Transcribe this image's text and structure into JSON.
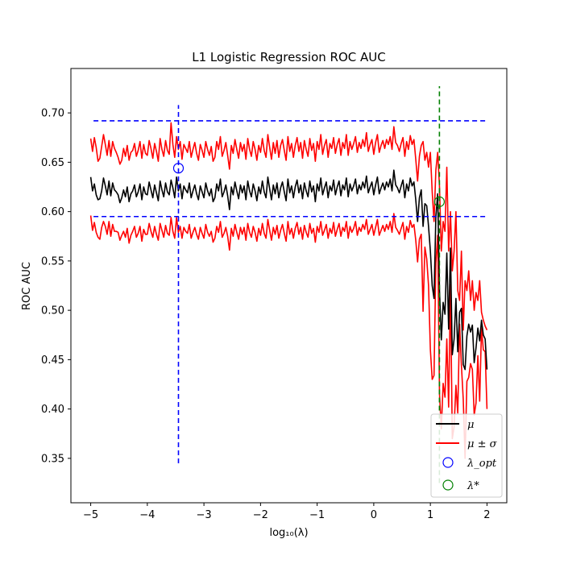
{
  "chart_data": {
    "type": "line",
    "title": "L1 Logistic Regression ROC AUC",
    "xlabel": "log₁₀(λ)",
    "ylabel": "ROC AUC",
    "xlim": [
      -5.35,
      2.35
    ],
    "ylim": [
      0.305,
      0.745
    ],
    "xticks": [
      -5,
      -4,
      -3,
      -2,
      -1,
      0,
      1,
      2
    ],
    "xtick_labels": [
      "−5",
      "−4",
      "−3",
      "−2",
      "−1",
      "0",
      "1",
      "2"
    ],
    "yticks": [
      0.35,
      0.4,
      0.45,
      0.5,
      0.55,
      0.6,
      0.65,
      0.7
    ],
    "ytick_labels": [
      "0.35",
      "0.40",
      "0.45",
      "0.50",
      "0.55",
      "0.60",
      "0.65",
      "0.70"
    ],
    "grid": false,
    "legend_position": "bottom-right",
    "legend": [
      "μ",
      "μ ± σ",
      "λ_opt",
      "λ*"
    ],
    "colors": {
      "mean": "#000000",
      "band": "#ff0000",
      "opt": "#0000ff",
      "star": "#008000"
    },
    "x_range": [
      -5,
      2
    ],
    "series": [
      {
        "name": "μ",
        "color": "#000000",
        "values": [
          0.635,
          0.621,
          0.628,
          0.617,
          0.612,
          0.613,
          0.621,
          0.634,
          0.626,
          0.617,
          0.631,
          0.616,
          0.629,
          0.622,
          0.62,
          0.617,
          0.609,
          0.614,
          0.622,
          0.615,
          0.625,
          0.61,
          0.618,
          0.621,
          0.627,
          0.615,
          0.62,
          0.628,
          0.612,
          0.625,
          0.618,
          0.617,
          0.63,
          0.622,
          0.614,
          0.627,
          0.619,
          0.611,
          0.631,
          0.622,
          0.615,
          0.629,
          0.62,
          0.617,
          0.632,
          0.624,
          0.614,
          0.635,
          0.621,
          0.628,
          0.613,
          0.626,
          0.622,
          0.619,
          0.629,
          0.614,
          0.621,
          0.627,
          0.618,
          0.612,
          0.626,
          0.62,
          0.614,
          0.629,
          0.621,
          0.616,
          0.623,
          0.61,
          0.614,
          0.628,
          0.621,
          0.633,
          0.615,
          0.62,
          0.627,
          0.616,
          0.602,
          0.625,
          0.617,
          0.63,
          0.621,
          0.613,
          0.627,
          0.619,
          0.626,
          0.612,
          0.631,
          0.621,
          0.615,
          0.628,
          0.621,
          0.611,
          0.625,
          0.618,
          0.631,
          0.62,
          0.614,
          0.635,
          0.623,
          0.612,
          0.627,
          0.618,
          0.629,
          0.614,
          0.624,
          0.63,
          0.62,
          0.611,
          0.633,
          0.619,
          0.626,
          0.614,
          0.625,
          0.632,
          0.619,
          0.627,
          0.613,
          0.629,
          0.621,
          0.615,
          0.631,
          0.62,
          0.626,
          0.61,
          0.628,
          0.621,
          0.634,
          0.617,
          0.624,
          0.63,
          0.614,
          0.626,
          0.621,
          0.632,
          0.617,
          0.625,
          0.631,
          0.616,
          0.627,
          0.622,
          0.634,
          0.615,
          0.628,
          0.621,
          0.626,
          0.633,
          0.618,
          0.627,
          0.622,
          0.63,
          0.624,
          0.636,
          0.619,
          0.625,
          0.63,
          0.617,
          0.627,
          0.635,
          0.618,
          0.624,
          0.629,
          0.622,
          0.63,
          0.625,
          0.633,
          0.621,
          0.642,
          0.627,
          0.624,
          0.619,
          0.626,
          0.632,
          0.614,
          0.628,
          0.621,
          0.634,
          0.626,
          0.63,
          0.612,
          0.59,
          0.614,
          0.622,
          0.585,
          0.608,
          0.606,
          0.585,
          0.56,
          0.525,
          0.512,
          0.595,
          0.618,
          0.52,
          0.47,
          0.508,
          0.496,
          0.558,
          0.481,
          0.563,
          0.455,
          0.471,
          0.512,
          0.458,
          0.498,
          0.502,
          0.445,
          0.44,
          0.474,
          0.486,
          0.478,
          0.485,
          0.447,
          0.462,
          0.482,
          0.469,
          0.49,
          0.475,
          0.471,
          0.44
        ]
      },
      {
        "name": "μ + σ",
        "color": "#ff0000",
        "values": [
          0.674,
          0.661,
          0.675,
          0.665,
          0.651,
          0.654,
          0.666,
          0.678,
          0.668,
          0.657,
          0.672,
          0.656,
          0.671,
          0.664,
          0.66,
          0.655,
          0.648,
          0.652,
          0.664,
          0.656,
          0.667,
          0.652,
          0.66,
          0.662,
          0.669,
          0.656,
          0.662,
          0.671,
          0.654,
          0.668,
          0.659,
          0.657,
          0.672,
          0.664,
          0.654,
          0.669,
          0.661,
          0.651,
          0.674,
          0.663,
          0.656,
          0.672,
          0.662,
          0.658,
          0.69,
          0.668,
          0.655,
          0.676,
          0.663,
          0.671,
          0.653,
          0.668,
          0.664,
          0.66,
          0.671,
          0.655,
          0.663,
          0.67,
          0.659,
          0.652,
          0.668,
          0.662,
          0.655,
          0.671,
          0.663,
          0.657,
          0.666,
          0.651,
          0.655,
          0.671,
          0.663,
          0.676,
          0.656,
          0.662,
          0.67,
          0.657,
          0.643,
          0.667,
          0.659,
          0.673,
          0.663,
          0.654,
          0.67,
          0.661,
          0.668,
          0.653,
          0.674,
          0.663,
          0.656,
          0.671,
          0.663,
          0.652,
          0.667,
          0.66,
          0.674,
          0.662,
          0.655,
          0.678,
          0.665,
          0.653,
          0.67,
          0.659,
          0.672,
          0.655,
          0.667,
          0.673,
          0.662,
          0.652,
          0.676,
          0.661,
          0.669,
          0.655,
          0.667,
          0.675,
          0.661,
          0.67,
          0.654,
          0.672,
          0.663,
          0.656,
          0.674,
          0.662,
          0.669,
          0.651,
          0.671,
          0.663,
          0.678,
          0.658,
          0.667,
          0.673,
          0.655,
          0.669,
          0.664,
          0.675,
          0.659,
          0.668,
          0.674,
          0.657,
          0.67,
          0.664,
          0.678,
          0.657,
          0.671,
          0.663,
          0.669,
          0.676,
          0.66,
          0.67,
          0.664,
          0.673,
          0.666,
          0.68,
          0.661,
          0.668,
          0.673,
          0.658,
          0.67,
          0.678,
          0.66,
          0.667,
          0.672,
          0.664,
          0.673,
          0.668,
          0.676,
          0.663,
          0.686,
          0.67,
          0.667,
          0.661,
          0.669,
          0.675,
          0.656,
          0.671,
          0.663,
          0.677,
          0.668,
          0.673,
          0.653,
          0.631,
          0.656,
          0.667,
          0.671,
          0.652,
          0.66,
          0.645,
          0.66,
          0.62,
          0.59,
          0.642,
          0.66,
          0.625,
          0.56,
          0.59,
          0.58,
          0.645,
          0.56,
          0.6,
          0.54,
          0.56,
          0.6,
          0.52,
          0.51,
          0.56,
          0.48,
          0.53,
          0.52,
          0.54,
          0.51,
          0.53,
          0.5,
          0.518,
          0.51,
          0.53,
          0.498,
          0.49,
          0.484,
          0.48
        ]
      },
      {
        "name": "μ − σ",
        "color": "#ff0000",
        "values": [
          0.596,
          0.581,
          0.589,
          0.579,
          0.574,
          0.572,
          0.584,
          0.59,
          0.585,
          0.577,
          0.59,
          0.575,
          0.587,
          0.58,
          0.58,
          0.579,
          0.571,
          0.576,
          0.58,
          0.574,
          0.583,
          0.568,
          0.576,
          0.58,
          0.585,
          0.574,
          0.578,
          0.585,
          0.57,
          0.582,
          0.577,
          0.577,
          0.588,
          0.58,
          0.574,
          0.585,
          0.577,
          0.571,
          0.588,
          0.581,
          0.574,
          0.586,
          0.578,
          0.576,
          0.594,
          0.58,
          0.573,
          0.594,
          0.579,
          0.585,
          0.573,
          0.584,
          0.58,
          0.578,
          0.587,
          0.573,
          0.579,
          0.584,
          0.577,
          0.572,
          0.584,
          0.578,
          0.573,
          0.587,
          0.579,
          0.575,
          0.58,
          0.569,
          0.573,
          0.585,
          0.579,
          0.59,
          0.574,
          0.578,
          0.584,
          0.575,
          0.561,
          0.583,
          0.575,
          0.587,
          0.579,
          0.572,
          0.584,
          0.577,
          0.584,
          0.571,
          0.588,
          0.579,
          0.574,
          0.585,
          0.579,
          0.57,
          0.583,
          0.576,
          0.588,
          0.578,
          0.573,
          0.592,
          0.581,
          0.571,
          0.584,
          0.577,
          0.586,
          0.573,
          0.581,
          0.587,
          0.578,
          0.57,
          0.59,
          0.577,
          0.583,
          0.573,
          0.583,
          0.589,
          0.577,
          0.584,
          0.572,
          0.586,
          0.579,
          0.574,
          0.588,
          0.578,
          0.583,
          0.569,
          0.585,
          0.579,
          0.59,
          0.576,
          0.581,
          0.587,
          0.573,
          0.583,
          0.578,
          0.589,
          0.575,
          0.582,
          0.588,
          0.575,
          0.584,
          0.58,
          0.59,
          0.573,
          0.585,
          0.579,
          0.583,
          0.59,
          0.576,
          0.584,
          0.58,
          0.587,
          0.582,
          0.592,
          0.577,
          0.582,
          0.587,
          0.576,
          0.584,
          0.592,
          0.576,
          0.581,
          0.586,
          0.58,
          0.587,
          0.582,
          0.59,
          0.579,
          0.598,
          0.584,
          0.581,
          0.577,
          0.583,
          0.589,
          0.572,
          0.585,
          0.579,
          0.591,
          0.584,
          0.587,
          0.571,
          0.549,
          0.572,
          0.577,
          0.499,
          0.564,
          0.552,
          0.525,
          0.46,
          0.43,
          0.434,
          0.548,
          0.576,
          0.415,
          0.38,
          0.426,
          0.412,
          0.471,
          0.402,
          0.526,
          0.37,
          0.382,
          0.424,
          0.396,
          0.486,
          0.444,
          0.41,
          0.35,
          0.428,
          0.432,
          0.446,
          0.44,
          0.394,
          0.406,
          0.454,
          0.408,
          0.482,
          0.46,
          0.458,
          0.4
        ]
      }
    ],
    "markers": [
      {
        "name": "λ_opt",
        "x": -3.45,
        "y": 0.644,
        "color": "#0000ff"
      },
      {
        "name": "λ*",
        "x": 1.16,
        "y": 0.61,
        "color": "#008000"
      }
    ],
    "reference_lines": {
      "horizontal": [
        {
          "y": 0.692,
          "x_from": -4.95,
          "x_to": 2.0,
          "color": "#0000ff"
        },
        {
          "y": 0.595,
          "x_from": -4.95,
          "x_to": 2.0,
          "color": "#0000ff"
        }
      ],
      "vertical": [
        {
          "x": -3.45,
          "y_from": 0.345,
          "y_to": 0.708,
          "color": "#0000ff"
        },
        {
          "x": 1.16,
          "y_from": 0.325,
          "y_to": 0.727,
          "color": "#008000"
        }
      ]
    }
  }
}
